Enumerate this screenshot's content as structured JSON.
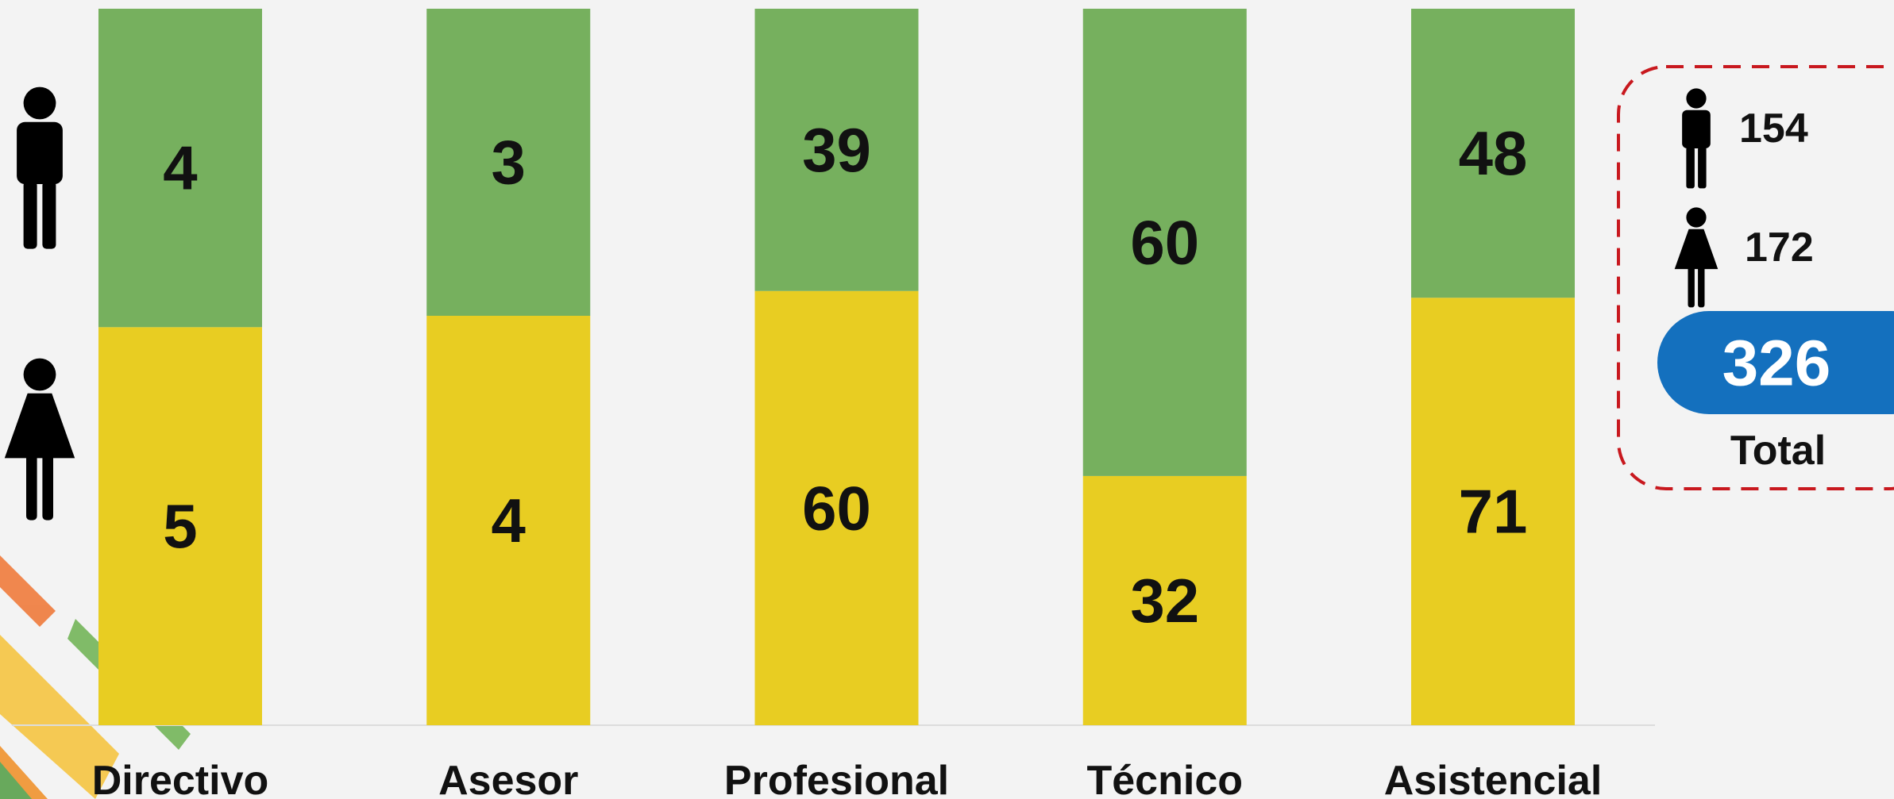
{
  "chart_data": {
    "type": "bar",
    "stacking": "percent",
    "categories": [
      "Directivo",
      "Asesor",
      "Profesional",
      "Técnico",
      "Asistencial"
    ],
    "series": [
      {
        "color": "#e8cd22",
        "values": [
          5,
          4,
          60,
          32,
          71
        ],
        "total": 172
      },
      {
        "color": "#76b05e",
        "values": [
          4,
          3,
          39,
          60,
          48
        ],
        "total": 154
      }
    ],
    "total": 326,
    "total_label": "Total"
  }
}
